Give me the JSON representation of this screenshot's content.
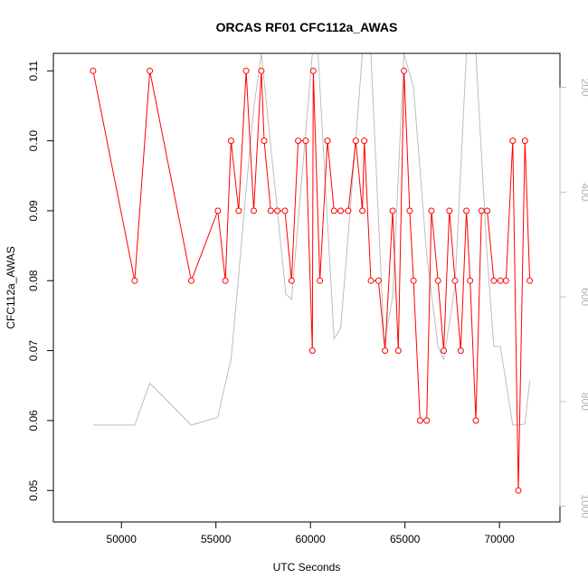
{
  "chart_data": {
    "type": "line",
    "title": "ORCAS RF01 CFC112a_AWAS",
    "xlabel": "UTC Seconds",
    "ylabel": "CFC112a_AWAS",
    "xlim": [
      46400,
      73200
    ],
    "ylim": [
      0.0455,
      0.1125
    ],
    "x_ticks": [
      50000,
      55000,
      60000,
      65000,
      70000
    ],
    "y_ticks": [
      0.05,
      0.06,
      0.07,
      0.08,
      0.09,
      0.1,
      0.11
    ],
    "y_tick_labels": [
      "0.05",
      "0.06",
      "0.07",
      "0.08",
      "0.09",
      "0.10",
      "0.11"
    ],
    "secondary_y": {
      "reversed": true,
      "lim": [
        135,
        1030
      ],
      "ticks": [
        200,
        400,
        600,
        800,
        1000
      ],
      "color": "#bebebe"
    },
    "grid": false,
    "series": [
      {
        "color": "#ff0000",
        "marker": "open-circle",
        "points": [
          [
            48500,
            0.11
          ],
          [
            50700,
            0.08
          ],
          [
            51500,
            0.11
          ],
          [
            53700,
            0.08
          ],
          [
            55100,
            0.09
          ],
          [
            55500,
            0.08
          ],
          [
            55800,
            0.1
          ],
          [
            56200,
            0.09
          ],
          [
            56600,
            0.11
          ],
          [
            57000,
            0.09
          ],
          [
            57400,
            0.11
          ],
          [
            57550,
            0.1
          ],
          [
            57900,
            0.09
          ],
          [
            58250,
            0.09
          ],
          [
            58650,
            0.09
          ],
          [
            59000,
            0.08
          ],
          [
            59350,
            0.1
          ],
          [
            59750,
            0.1
          ],
          [
            60100,
            0.07
          ],
          [
            60150,
            0.11
          ],
          [
            60500,
            0.08
          ],
          [
            60900,
            0.1
          ],
          [
            61250,
            0.09
          ],
          [
            61600,
            0.09
          ],
          [
            62000,
            0.09
          ],
          [
            62400,
            0.1
          ],
          [
            62750,
            0.09
          ],
          [
            62850,
            0.1
          ],
          [
            63200,
            0.08
          ],
          [
            63600,
            0.08
          ],
          [
            63950,
            0.07
          ],
          [
            64350,
            0.09
          ],
          [
            64650,
            0.07
          ],
          [
            64950,
            0.11
          ],
          [
            65250,
            0.09
          ],
          [
            65450,
            0.08
          ],
          [
            65800,
            0.06
          ],
          [
            66150,
            0.06
          ],
          [
            66400,
            0.09
          ],
          [
            66750,
            0.08
          ],
          [
            67050,
            0.07
          ],
          [
            67350,
            0.09
          ],
          [
            67650,
            0.08
          ],
          [
            67950,
            0.07
          ],
          [
            68250,
            0.09
          ],
          [
            68450,
            0.08
          ],
          [
            68750,
            0.06
          ],
          [
            69050,
            0.09
          ],
          [
            69350,
            0.09
          ],
          [
            69700,
            0.08
          ],
          [
            70050,
            0.08
          ],
          [
            70350,
            0.08
          ],
          [
            70700,
            0.1
          ],
          [
            71000,
            0.05
          ],
          [
            71350,
            0.1
          ],
          [
            71600,
            0.08
          ]
        ]
      },
      {
        "color": "#bebebe",
        "axis": "secondary",
        "points": [
          [
            48500,
            845
          ],
          [
            50700,
            845
          ],
          [
            51500,
            765
          ],
          [
            53700,
            845
          ],
          [
            55100,
            830
          ],
          [
            55400,
            780
          ],
          [
            55800,
            720
          ],
          [
            56200,
            560
          ],
          [
            56600,
            395
          ],
          [
            57000,
            240
          ],
          [
            57400,
            135
          ],
          [
            58700,
            595
          ],
          [
            59000,
            605
          ],
          [
            60100,
            135
          ],
          [
            60400,
            135
          ],
          [
            61250,
            680
          ],
          [
            61600,
            660
          ],
          [
            62400,
            300
          ],
          [
            62750,
            135
          ],
          [
            63200,
            135
          ],
          [
            63900,
            690
          ],
          [
            64350,
            600
          ],
          [
            64950,
            135
          ],
          [
            65450,
            200
          ],
          [
            66150,
            520
          ],
          [
            66750,
            695
          ],
          [
            67050,
            720
          ],
          [
            67650,
            580
          ],
          [
            68250,
            135
          ],
          [
            68750,
            135
          ],
          [
            69350,
            525
          ],
          [
            69700,
            695
          ],
          [
            70050,
            695
          ],
          [
            70700,
            845
          ],
          [
            71000,
            845
          ],
          [
            71350,
            843
          ],
          [
            71600,
            760
          ]
        ]
      }
    ]
  }
}
